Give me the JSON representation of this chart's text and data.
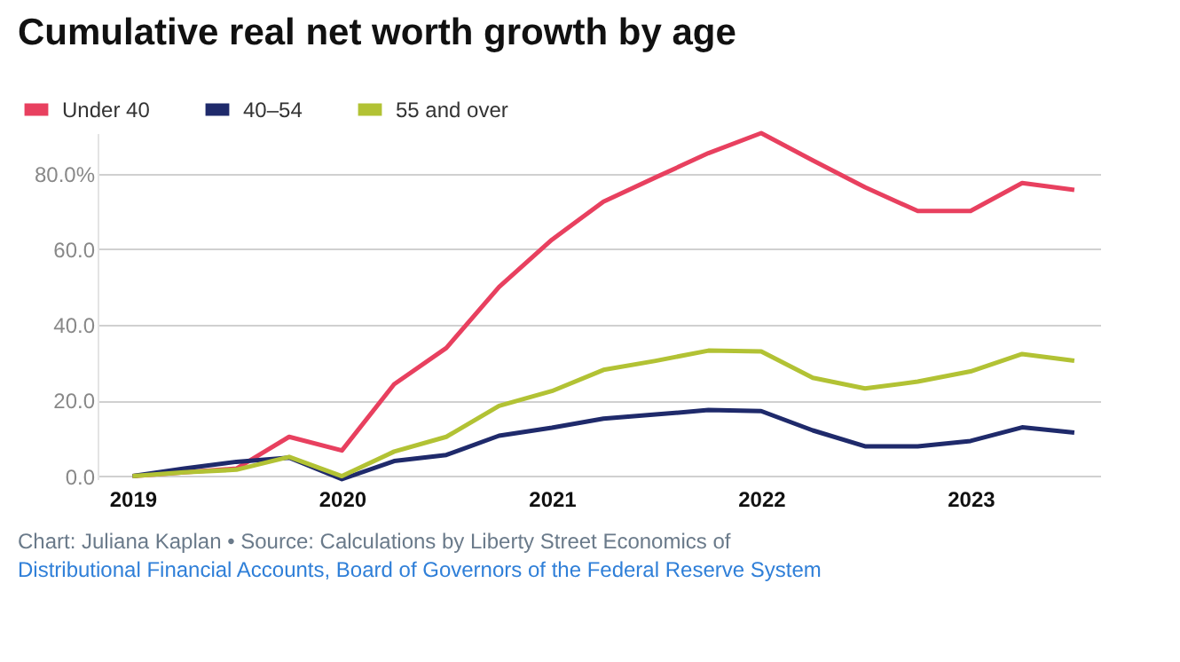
{
  "chart_data": {
    "type": "line",
    "title": "Cumulative real net worth growth by age",
    "x": [
      "2019-01",
      "2019-04",
      "2019-07",
      "2019-10",
      "2020-01",
      "2020-04",
      "2020-07",
      "2020-10",
      "2021-01",
      "2021-04",
      "2021-07",
      "2021-10",
      "2022-01",
      "2022-04",
      "2022-07",
      "2022-10",
      "2023-01",
      "2023-04",
      "2023-07"
    ],
    "series": [
      {
        "name": "Under 40",
        "color": "#e8405f",
        "values": [
          0,
          1,
          2,
          10.4,
          6.8,
          24.3,
          33.9,
          50,
          62.5,
          72.6,
          79,
          85.4,
          90.7,
          83.5,
          76.4,
          70.1,
          70.1,
          77.5,
          75.7
        ]
      },
      {
        "name": "40–54",
        "color": "#1f2a6b",
        "values": [
          0,
          2,
          3.8,
          4.9,
          -0.8,
          4,
          5.6,
          10.7,
          12.8,
          15.2,
          16.3,
          17.5,
          17.2,
          12.1,
          7.9,
          7.9,
          9.3,
          12.9,
          11.5
        ]
      },
      {
        "name": "55 and over",
        "color": "#b2c234",
        "values": [
          0,
          1,
          1.7,
          5.1,
          0,
          6.5,
          10.4,
          18.6,
          22.5,
          28.1,
          30.5,
          33.2,
          33,
          26,
          23.2,
          25,
          27.7,
          32.3,
          30.5
        ]
      }
    ],
    "xlim": [
      "2018-11-01",
      "2023-08-15"
    ],
    "xticks": [
      "2019",
      "2020",
      "2021",
      "2022",
      "2023"
    ],
    "ylim": [
      -0.8,
      90.7
    ],
    "yticks": [
      {
        "value": 0,
        "label": "0.0"
      },
      {
        "value": 20,
        "label": "20.0"
      },
      {
        "value": 40,
        "label": "40.0"
      },
      {
        "value": 60,
        "label": "60.0"
      },
      {
        "value": 80,
        "label": "80.0%"
      }
    ],
    "grid": "y",
    "legend": "top left",
    "marker": "none",
    "line_style": "solid",
    "annotations": [
      "Chart: Juliana Kaplan • Source: Calculations by Liberty Street Economics of",
      "Distributional Financial Accounts, Board of Governors of the Federal Reserve System"
    ]
  }
}
